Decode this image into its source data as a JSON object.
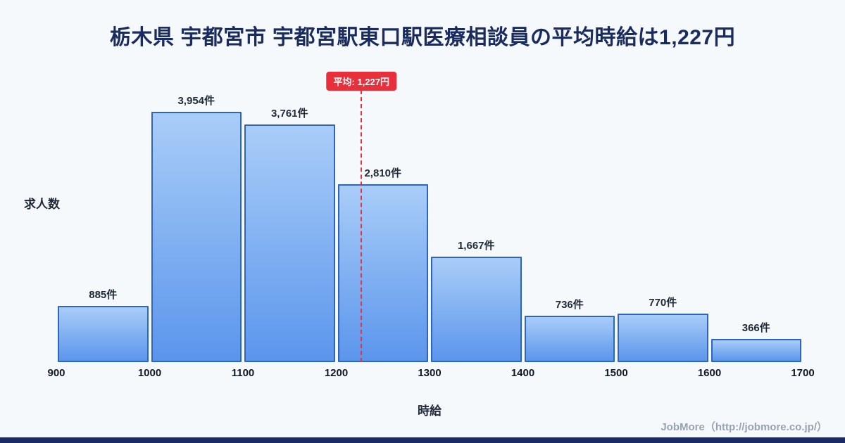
{
  "page": {
    "title": "栃木県 宇都宮市 宇都宮駅東口駅医療相談員の平均時給は1,227円",
    "footer": "JobMore（http://jobmore.co.jp/）"
  },
  "chart_data": {
    "type": "bar",
    "title": "栃木県 宇都宮市 宇都宮駅東口駅医療相談員の平均時給は1,227円",
    "xlabel": "時給",
    "ylabel": "求人数",
    "x_ticks": [
      "900",
      "1000",
      "1100",
      "1200",
      "1300",
      "1400",
      "1500",
      "1600",
      "1700"
    ],
    "x_range": [
      900,
      1700
    ],
    "categories": [
      "900-1000",
      "1000-1100",
      "1100-1200",
      "1200-1300",
      "1300-1400",
      "1400-1500",
      "1500-1600",
      "1600-1700"
    ],
    "values": [
      885,
      3954,
      3761,
      2810,
      1667,
      736,
      770,
      366
    ],
    "bar_labels": [
      "885件",
      "3,954件",
      "3,761件",
      "2,810件",
      "1,667件",
      "736件",
      "770件",
      "366件"
    ],
    "ylim": [
      0,
      4300
    ],
    "grid": false,
    "legend": false,
    "average": {
      "value": 1227,
      "label": "平均: 1,227円"
    },
    "colors": {
      "bar_top": "#a9cdf8",
      "bar_bottom": "#5b95ec",
      "bar_border": "#2e66bd",
      "average_line": "#e8303c",
      "title_text": "#1a2b5e"
    }
  }
}
